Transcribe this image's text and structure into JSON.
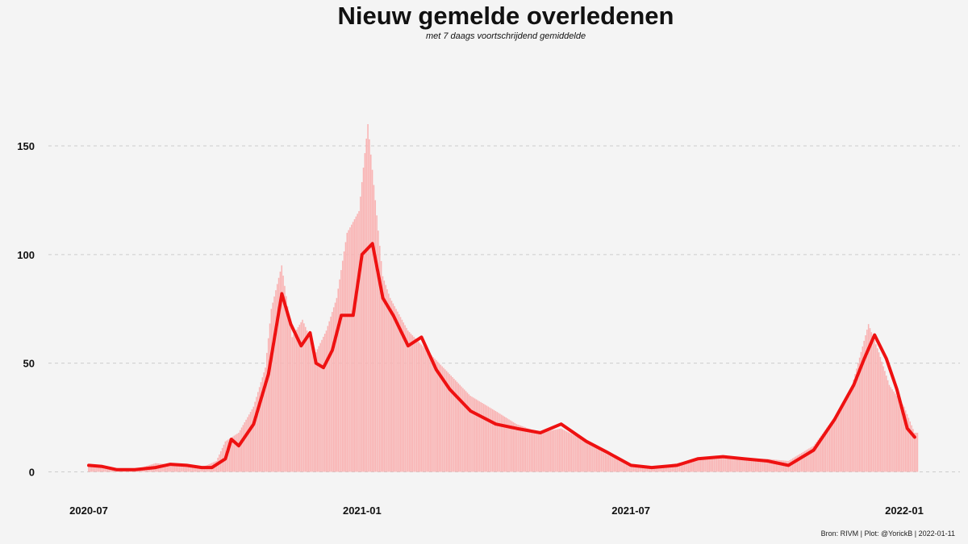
{
  "title": "Nieuw gemelde overledenen",
  "subtitle": "met 7 daags voortschrijdend gemiddelde",
  "caption": "Bron: RIVM | Plot: @YorickB |  2022-01-11",
  "colors": {
    "background": "#f4f4f4",
    "bars": "#f9b3b3",
    "line": "#ee1111",
    "grid": "#cccccc"
  },
  "chart_data": {
    "type": "bar",
    "x_start": "2020-07-01",
    "x_end": "2022-01-10",
    "x_ticks": [
      "2020-07",
      "2021-01",
      "2021-07",
      "2022-01"
    ],
    "y_ticks": [
      0,
      50,
      100,
      150
    ],
    "ylim": [
      -10,
      190
    ],
    "grid": "horizontal dashed",
    "series": [
      {
        "type": "bar",
        "name": "",
        "x": [
          "2020-07-01",
          "2020-07-15",
          "2020-08-01",
          "2020-08-15",
          "2020-09-01",
          "2020-09-15",
          "2020-09-25",
          "2020-10-01",
          "2020-10-10",
          "2020-10-20",
          "2020-10-28",
          "2020-11-01",
          "2020-11-08",
          "2020-11-15",
          "2020-11-22",
          "2020-12-01",
          "2020-12-08",
          "2020-12-15",
          "2020-12-22",
          "2020-12-30",
          "2021-01-05",
          "2021-01-10",
          "2021-01-15",
          "2021-01-20",
          "2021-02-01",
          "2021-02-15",
          "2021-03-01",
          "2021-03-15",
          "2021-04-01",
          "2021-04-15",
          "2021-05-01",
          "2021-05-15",
          "2021-06-01",
          "2021-06-15",
          "2021-07-01",
          "2021-07-15",
          "2021-08-01",
          "2021-08-15",
          "2021-09-01",
          "2021-09-15",
          "2021-10-01",
          "2021-10-15",
          "2021-11-01",
          "2021-11-15",
          "2021-11-25",
          "2021-12-01",
          "2021-12-08",
          "2021-12-15",
          "2021-12-22",
          "2022-01-01",
          "2022-01-08"
        ],
        "values": [
          3,
          2,
          1,
          4,
          3,
          2,
          5,
          14,
          18,
          30,
          48,
          75,
          95,
          62,
          70,
          55,
          65,
          80,
          110,
          120,
          160,
          125,
          90,
          80,
          65,
          55,
          45,
          35,
          28,
          22,
          18,
          20,
          14,
          8,
          3,
          2,
          4,
          6,
          7,
          6,
          6,
          5,
          12,
          25,
          35,
          50,
          68,
          55,
          40,
          30,
          18
        ]
      },
      {
        "type": "line",
        "name": "",
        "x": [
          "2020-07-01",
          "2020-07-10",
          "2020-07-20",
          "2020-08-01",
          "2020-08-15",
          "2020-08-25",
          "2020-09-05",
          "2020-09-15",
          "2020-09-22",
          "2020-10-01",
          "2020-10-05",
          "2020-10-10",
          "2020-10-20",
          "2020-10-30",
          "2020-11-08",
          "2020-11-14",
          "2020-11-21",
          "2020-11-27",
          "2020-12-01",
          "2020-12-06",
          "2020-12-12",
          "2020-12-18",
          "2020-12-26",
          "2021-01-01",
          "2021-01-08",
          "2021-01-15",
          "2021-01-22",
          "2021-02-01",
          "2021-02-10",
          "2021-02-20",
          "2021-03-01",
          "2021-03-15",
          "2021-04-01",
          "2021-04-15",
          "2021-05-01",
          "2021-05-15",
          "2021-06-01",
          "2021-06-15",
          "2021-07-01",
          "2021-07-15",
          "2021-08-01",
          "2021-08-15",
          "2021-09-01",
          "2021-09-15",
          "2021-10-01",
          "2021-10-15",
          "2021-11-01",
          "2021-11-15",
          "2021-11-28",
          "2021-12-05",
          "2021-12-12",
          "2021-12-20",
          "2021-12-27",
          "2022-01-03",
          "2022-01-08"
        ],
        "values": [
          3,
          2.5,
          1,
          1,
          2,
          3.5,
          3,
          2,
          2,
          6,
          15,
          12,
          22,
          45,
          82,
          68,
          58,
          64,
          50,
          48,
          56,
          72,
          72,
          100,
          105,
          80,
          72,
          58,
          62,
          47,
          38,
          28,
          22,
          20,
          18,
          22,
          14,
          9,
          3,
          2,
          3,
          6,
          7,
          6,
          5,
          3,
          10,
          24,
          40,
          52,
          63,
          52,
          38,
          20,
          16
        ]
      }
    ]
  }
}
